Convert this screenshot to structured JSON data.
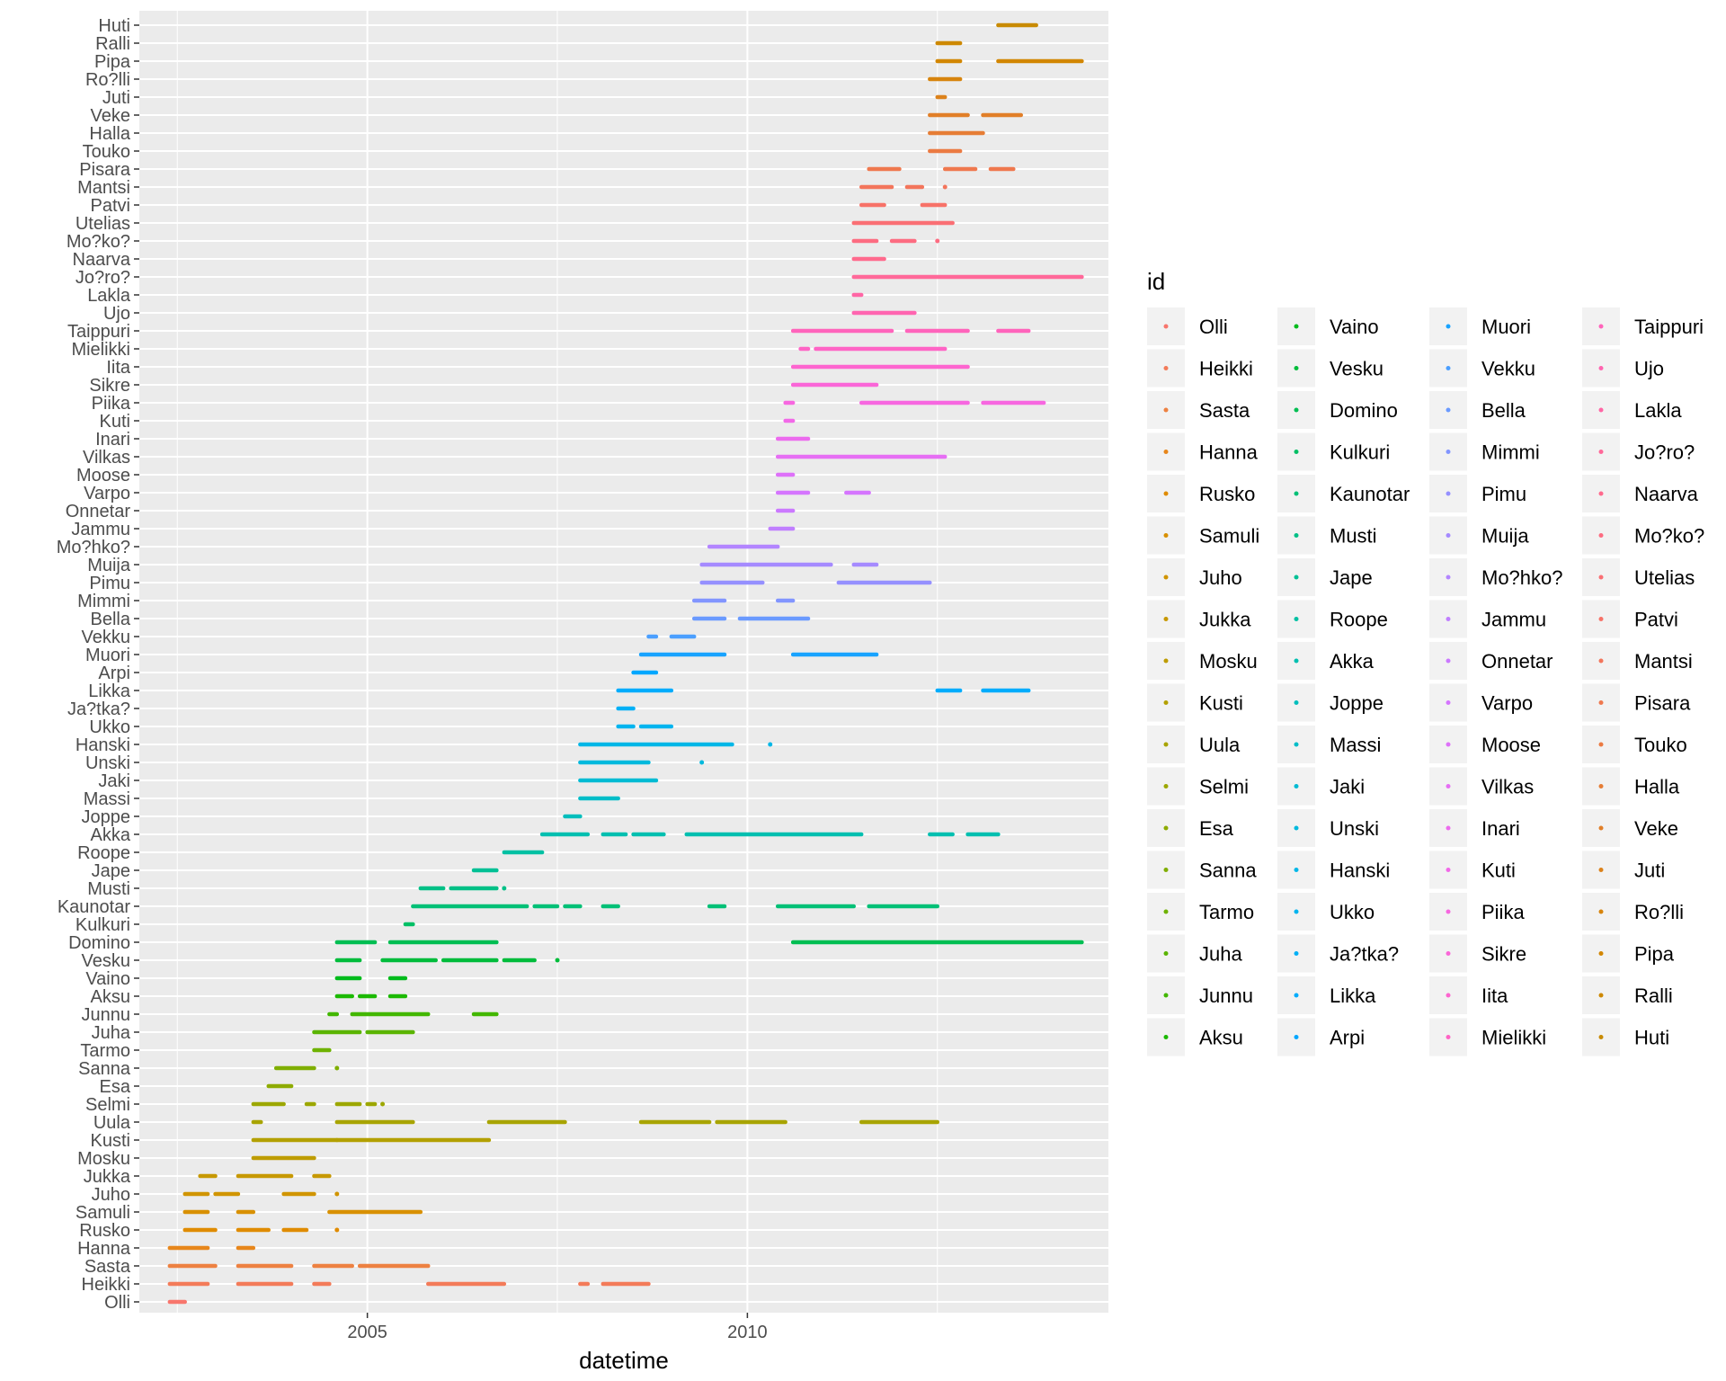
{
  "chart_data": {
    "type": "scatter",
    "title": "",
    "xlabel": "datetime",
    "ylabel": "",
    "xlim": [
      2002.0,
      2014.75
    ],
    "x_ticks": [
      {
        "value": 2005,
        "label": "2005"
      },
      {
        "value": 2010,
        "label": "2010"
      }
    ],
    "grid": true,
    "legend_title": "id",
    "legend_position": "right",
    "series": [
      {
        "name": "Olli",
        "color": "#F8766D",
        "x": [
          2002.4,
          2002.6
        ]
      },
      {
        "name": "Heikki",
        "color": "#F37B59",
        "x": [
          2002.4,
          2002.9,
          2003.3,
          2004.0,
          2004.3,
          2004.5,
          2005.8,
          2006.8,
          2007.8,
          2007.9,
          2008.1,
          2008.7
        ]
      },
      {
        "name": "Sasta",
        "color": "#ED8141",
        "x": [
          2002.4,
          2003.0,
          2003.3,
          2004.0,
          2004.3,
          2004.8,
          2004.9,
          2005.8
        ]
      },
      {
        "name": "Hanna",
        "color": "#E7861B",
        "x": [
          2002.4,
          2002.9,
          2003.3,
          2003.5
        ]
      },
      {
        "name": "Rusko",
        "color": "#DF8B00",
        "x": [
          2002.6,
          2003.0,
          2003.3,
          2003.7,
          2003.9,
          2004.2,
          2004.6
        ]
      },
      {
        "name": "Samuli",
        "color": "#D89000",
        "x": [
          2002.6,
          2002.9,
          2003.3,
          2003.5,
          2004.5,
          2005.7
        ]
      },
      {
        "name": "Juho",
        "color": "#D09400",
        "x": [
          2002.6,
          2002.9,
          2003.0,
          2003.3,
          2003.9,
          2004.3,
          2004.6
        ]
      },
      {
        "name": "Jukka",
        "color": "#C79800",
        "x": [
          2002.8,
          2003.0,
          2003.3,
          2004.0,
          2004.3,
          2004.5
        ]
      },
      {
        "name": "Mosku",
        "color": "#BE9C00",
        "x": [
          2003.5,
          2004.3
        ]
      },
      {
        "name": "Kusti",
        "color": "#B3A000",
        "x": [
          2003.5,
          2004.6,
          2004.6,
          2006.6
        ]
      },
      {
        "name": "Uula",
        "color": "#A8A400",
        "x": [
          2003.5,
          2003.6,
          2004.6,
          2005.6,
          2006.6,
          2007.6,
          2008.6,
          2009.5,
          2009.6,
          2010.5,
          2011.5,
          2012.5
        ]
      },
      {
        "name": "Selmi",
        "color": "#9CA700",
        "x": [
          2003.5,
          2003.9,
          2004.2,
          2004.3,
          2004.6,
          2004.9,
          2005.0,
          2005.1,
          2005.2
        ]
      },
      {
        "name": "Esa",
        "color": "#8EAB00",
        "x": [
          2003.7,
          2004.0
        ]
      },
      {
        "name": "Sanna",
        "color": "#7FAE00",
        "x": [
          2003.8,
          2004.3,
          2004.6
        ]
      },
      {
        "name": "Tarmo",
        "color": "#6EB200",
        "x": [
          2004.3,
          2004.5
        ]
      },
      {
        "name": "Juha",
        "color": "#5AB400",
        "x": [
          2004.3,
          2004.9,
          2005.0,
          2005.6
        ]
      },
      {
        "name": "Junnu",
        "color": "#42B700",
        "x": [
          2004.5,
          2004.6,
          2004.8,
          2005.8,
          2006.4,
          2006.7
        ]
      },
      {
        "name": "Aksu",
        "color": "#1BB900",
        "x": [
          2004.6,
          2004.8,
          2004.9,
          2005.1,
          2005.3,
          2005.5
        ]
      },
      {
        "name": "Vaino",
        "color": "#00BB1C",
        "x": [
          2004.6,
          2004.9,
          2005.3,
          2005.5
        ]
      },
      {
        "name": "Vesku",
        "color": "#00BC3B",
        "x": [
          2004.6,
          2004.9,
          2005.2,
          2005.9,
          2006.0,
          2006.7,
          2006.8,
          2007.2,
          2007.5
        ]
      },
      {
        "name": "Domino",
        "color": "#00BE52",
        "x": [
          2004.6,
          2005.1,
          2005.3,
          2006.7,
          2010.6,
          2014.4
        ]
      },
      {
        "name": "Kulkuri",
        "color": "#00BF65",
        "x": [
          2005.5,
          2005.6
        ]
      },
      {
        "name": "Kaunotar",
        "color": "#00C076",
        "x": [
          2005.6,
          2007.1,
          2007.2,
          2007.5,
          2007.6,
          2007.8,
          2008.1,
          2008.3,
          2009.5,
          2009.7,
          2010.4,
          2011.4,
          2011.6,
          2012.5
        ]
      },
      {
        "name": "Musti",
        "color": "#00C086",
        "x": [
          2005.7,
          2006.0,
          2006.1,
          2006.7,
          2006.8
        ]
      },
      {
        "name": "Jape",
        "color": "#00C095",
        "x": [
          2006.4,
          2006.7
        ]
      },
      {
        "name": "Roope",
        "color": "#00C0A3",
        "x": [
          2006.8,
          2007.3
        ]
      },
      {
        "name": "Akka",
        "color": "#00BFB0",
        "x": [
          2007.3,
          2007.9,
          2008.1,
          2008.4,
          2008.5,
          2008.9,
          2009.2,
          2011.5,
          2012.4,
          2012.7,
          2012.9,
          2013.3
        ]
      },
      {
        "name": "Joppe",
        "color": "#00BEBC",
        "x": [
          2007.6,
          2007.8
        ]
      },
      {
        "name": "Massi",
        "color": "#00BDC8",
        "x": [
          2007.8,
          2008.3
        ]
      },
      {
        "name": "Jaki",
        "color": "#00BBD3",
        "x": [
          2007.8,
          2008.8
        ]
      },
      {
        "name": "Unski",
        "color": "#00B9DD",
        "x": [
          2007.8,
          2008.7,
          2009.4
        ]
      },
      {
        "name": "Hanski",
        "color": "#00B7E7",
        "x": [
          2007.8,
          2009.8,
          2010.3
        ]
      },
      {
        "name": "Ukko",
        "color": "#00B4EF",
        "x": [
          2008.3,
          2008.5,
          2008.6,
          2009.0
        ]
      },
      {
        "name": "Ja?tka?",
        "color": "#00B0F6",
        "x": [
          2008.3,
          2008.5
        ]
      },
      {
        "name": "Likka",
        "color": "#00ACFC",
        "x": [
          2008.3,
          2009.0,
          2012.5,
          2012.8,
          2013.1,
          2013.7
        ]
      },
      {
        "name": "Arpi",
        "color": "#00A7FF",
        "x": [
          2008.5,
          2008.8
        ]
      },
      {
        "name": "Muori",
        "color": "#18A3FF",
        "x": [
          2008.6,
          2009.7,
          2010.6,
          2011.7
        ]
      },
      {
        "name": "Vekku",
        "color": "#4B9FFF",
        "x": [
          2008.7,
          2008.8,
          2009.0,
          2009.3
        ]
      },
      {
        "name": "Bella",
        "color": "#6A9AFF",
        "x": [
          2009.3,
          2009.7,
          2009.9,
          2010.8
        ]
      },
      {
        "name": "Mimmi",
        "color": "#8295FF",
        "x": [
          2009.3,
          2009.7,
          2010.4,
          2010.6
        ]
      },
      {
        "name": "Pimu",
        "color": "#9590FF",
        "x": [
          2009.4,
          2010.2,
          2011.2,
          2012.4
        ]
      },
      {
        "name": "Muija",
        "color": "#A58AFF",
        "x": [
          2009.4,
          2011.1,
          2011.4,
          2011.7
        ]
      },
      {
        "name": "Mo?hko?",
        "color": "#B385FF",
        "x": [
          2009.5,
          2010.4
        ]
      },
      {
        "name": "Jammu",
        "color": "#C07FFF",
        "x": [
          2010.3,
          2010.6
        ]
      },
      {
        "name": "Onnetar",
        "color": "#CB79FF",
        "x": [
          2010.4,
          2010.6
        ]
      },
      {
        "name": "Varpo",
        "color": "#D575FE",
        "x": [
          2010.4,
          2010.8,
          2011.3,
          2011.6
        ]
      },
      {
        "name": "Moose",
        "color": "#DE71F9",
        "x": [
          2010.4,
          2010.6
        ]
      },
      {
        "name": "Vilkas",
        "color": "#E66EF4",
        "x": [
          2010.4,
          2012.6
        ]
      },
      {
        "name": "Inari",
        "color": "#EC6BEE",
        "x": [
          2010.4,
          2010.8
        ]
      },
      {
        "name": "Kuti",
        "color": "#F269E8",
        "x": [
          2010.5,
          2010.6
        ]
      },
      {
        "name": "Piika",
        "color": "#F767E0",
        "x": [
          2010.5,
          2010.6,
          2011.5,
          2012.9,
          2013.1,
          2013.9
        ]
      },
      {
        "name": "Sikre",
        "color": "#FA66D8",
        "x": [
          2010.6,
          2011.7
        ]
      },
      {
        "name": "Iita",
        "color": "#FD65CF",
        "x": [
          2010.6,
          2012.9
        ]
      },
      {
        "name": "Mielikki",
        "color": "#FF64C5",
        "x": [
          2010.7,
          2010.8,
          2010.9,
          2012.6
        ]
      },
      {
        "name": "Taippuri",
        "color": "#FF64BB",
        "x": [
          2010.6,
          2011.9,
          2012.1,
          2012.9,
          2013.3,
          2013.7
        ]
      },
      {
        "name": "Ujo",
        "color": "#FF65B0",
        "x": [
          2011.4,
          2012.2
        ]
      },
      {
        "name": "Lakla",
        "color": "#FF66A5",
        "x": [
          2011.4,
          2011.5
        ]
      },
      {
        "name": "Jo?ro?",
        "color": "#FF6899",
        "x": [
          2011.4,
          2014.4
        ]
      },
      {
        "name": "Naarva",
        "color": "#FF6A8D",
        "x": [
          2011.4,
          2011.8
        ]
      },
      {
        "name": "Mo?ko?",
        "color": "#FD6C81",
        "x": [
          2011.4,
          2011.7,
          2011.9,
          2012.2,
          2012.5
        ]
      },
      {
        "name": "Utelias",
        "color": "#FA6F74",
        "x": [
          2011.4,
          2012.7
        ]
      },
      {
        "name": "Patvi",
        "color": "#F77268",
        "x": [
          2011.5,
          2011.8,
          2012.3,
          2012.6
        ]
      },
      {
        "name": "Mantsi",
        "color": "#F3755B",
        "x": [
          2011.5,
          2011.9,
          2012.1,
          2012.3,
          2012.6
        ]
      },
      {
        "name": "Pisara",
        "color": "#EF784E",
        "x": [
          2011.6,
          2012.0,
          2012.6,
          2013.0,
          2013.2,
          2013.5
        ]
      },
      {
        "name": "Touko",
        "color": "#EB7A42",
        "x": [
          2012.4,
          2012.8
        ]
      },
      {
        "name": "Halla",
        "color": "#E67D35",
        "x": [
          2012.4,
          2013.1
        ]
      },
      {
        "name": "Veke",
        "color": "#E17F28",
        "x": [
          2012.4,
          2012.9,
          2013.1,
          2013.6
        ]
      },
      {
        "name": "Juti",
        "color": "#DC821B",
        "x": [
          2012.5,
          2012.6
        ]
      },
      {
        "name": "Ro?lli",
        "color": "#D7840D",
        "x": [
          2012.4,
          2012.8
        ]
      },
      {
        "name": "Pipa",
        "color": "#D28600",
        "x": [
          2012.5,
          2012.8,
          2013.3,
          2014.4
        ]
      },
      {
        "name": "Ralli",
        "color": "#CD8800",
        "x": [
          2012.5,
          2012.8
        ]
      },
      {
        "name": "Huti",
        "color": "#C88A00",
        "x": [
          2013.3,
          2013.8
        ]
      }
    ]
  }
}
